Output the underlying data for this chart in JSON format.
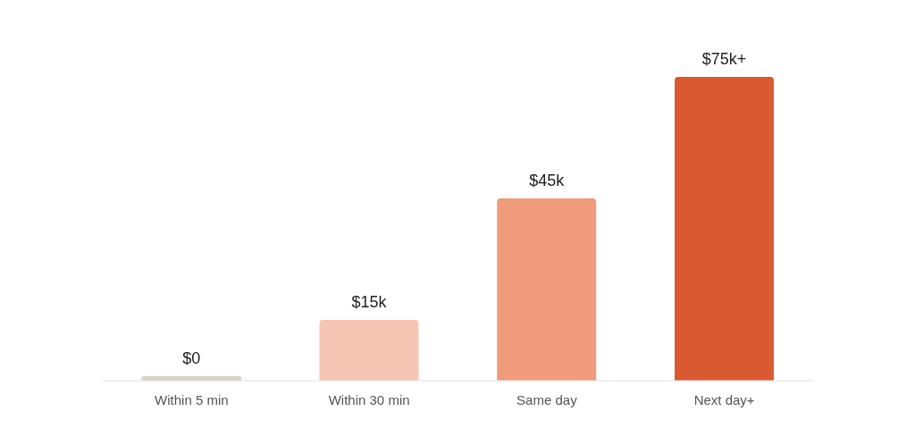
{
  "chart_data": {
    "type": "bar",
    "categories": [
      "Within 5 min",
      "Within 30 min",
      "Same day",
      "Next day+"
    ],
    "values": [
      0,
      15,
      45,
      75
    ],
    "colors": [
      "#d9d2c9",
      "#f6c4b3",
      "#f09b7c",
      "#d95a31"
    ],
    "value_labels": [
      "$0",
      "$15k",
      "$45k",
      "$75k+"
    ],
    "grid": false,
    "legend": false
  }
}
